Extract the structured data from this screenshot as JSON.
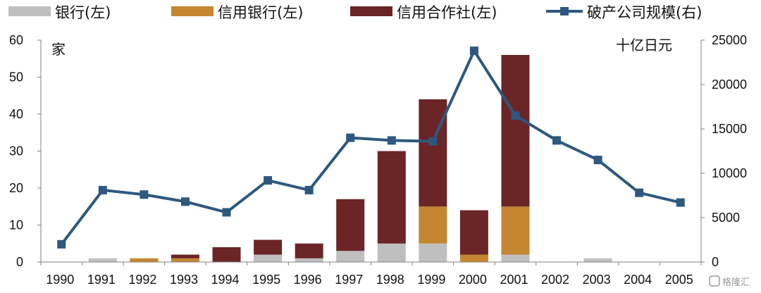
{
  "chart_data": {
    "type": "bar+line",
    "categories": [
      "1990",
      "1991",
      "1992",
      "1993",
      "1994",
      "1995",
      "1996",
      "1997",
      "1998",
      "1999",
      "2000",
      "2001",
      "2002",
      "2003",
      "2004",
      "2005"
    ],
    "left_axis": {
      "unit": "家",
      "ylim": [
        0,
        60
      ],
      "ticks": [
        0,
        10,
        20,
        30,
        40,
        50,
        60
      ]
    },
    "right_axis": {
      "unit": "十亿日元",
      "ylim": [
        0,
        25000
      ],
      "ticks": [
        0,
        5000,
        10000,
        15000,
        20000,
        25000
      ]
    },
    "stacked_bars": [
      {
        "name": "银行(左)",
        "color": "#bfbfbf",
        "values": [
          0,
          1,
          0,
          0,
          0,
          2,
          1,
          3,
          5,
          5,
          0,
          2,
          0,
          1,
          0,
          0
        ]
      },
      {
        "name": "信用银行(左)",
        "color": "#c48631",
        "values": [
          0,
          0,
          1,
          1,
          0,
          0,
          0,
          0,
          0,
          10,
          2,
          13,
          0,
          0,
          0,
          0
        ]
      },
      {
        "name": "信用合作社(左)",
        "color": "#6b2527",
        "values": [
          0,
          0,
          0,
          1,
          4,
          4,
          4,
          14,
          25,
          29,
          12,
          41,
          0,
          0,
          0,
          0
        ]
      }
    ],
    "line": {
      "name": "破产公司规模(右)",
      "color": "#2e587e",
      "axis": "right",
      "values": [
        2000,
        8100,
        7600,
        6800,
        5600,
        9200,
        8100,
        14000,
        13700,
        13600,
        23800,
        16500,
        13700,
        11500,
        7800,
        6700
      ]
    },
    "legend_position": "top",
    "grid": false
  },
  "watermark": "格隆汇"
}
